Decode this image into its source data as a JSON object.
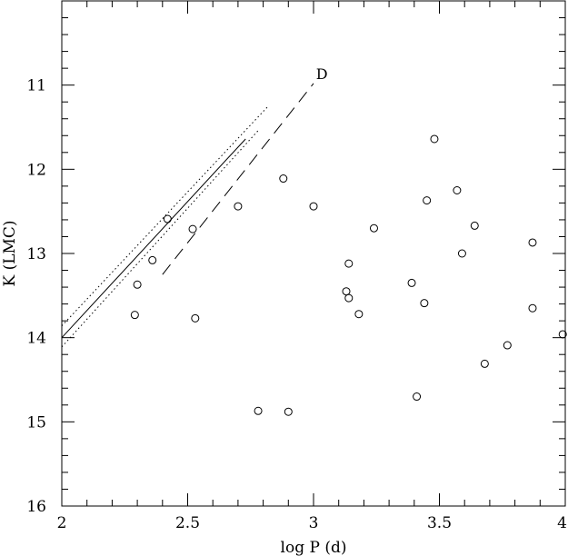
{
  "chart_data": {
    "type": "scatter",
    "title": "",
    "xlabel": "log P (d)",
    "ylabel": "K (LMC)",
    "xlim": [
      2.0,
      4.0
    ],
    "ylim": [
      16.0,
      10.0
    ],
    "y_inverted": true,
    "grid": false,
    "x_major_ticks": [
      2,
      2.5,
      3,
      3.5,
      4
    ],
    "x_tick_labels": [
      "2",
      "2.5",
      "3",
      "3.5",
      "4"
    ],
    "y_major_ticks": [
      11,
      12,
      13,
      14,
      15,
      16
    ],
    "y_tick_labels": [
      "11",
      "12",
      "13",
      "14",
      "15",
      "16"
    ],
    "series": [
      {
        "marker": "open-circle",
        "x": [
          2.29,
          2.3,
          2.36,
          2.42,
          2.52,
          2.53,
          2.7,
          2.78,
          2.88,
          2.9,
          3.0,
          3.13,
          3.14,
          3.14,
          3.18,
          3.24,
          3.39,
          3.41,
          3.44,
          3.45,
          3.48,
          3.57,
          3.59,
          3.64,
          3.68,
          3.77,
          3.87,
          3.87,
          3.99
        ],
        "y": [
          13.73,
          13.37,
          13.08,
          12.59,
          12.71,
          13.77,
          12.44,
          14.87,
          12.11,
          14.88,
          12.44,
          13.45,
          13.12,
          13.53,
          13.72,
          12.7,
          13.35,
          14.7,
          13.59,
          12.37,
          11.64,
          12.25,
          13.0,
          12.67,
          14.31,
          14.09,
          12.87,
          13.65,
          13.96
        ]
      }
    ],
    "lines": [
      {
        "style": "solid",
        "x": [
          2.0,
          2.73
        ],
        "y": [
          14.0,
          11.64
        ]
      },
      {
        "style": "dotted",
        "x": [
          2.0,
          2.82
        ],
        "y": [
          13.86,
          11.25
        ]
      },
      {
        "style": "dotted",
        "x": [
          2.0,
          2.78
        ],
        "y": [
          14.11,
          11.54
        ]
      },
      {
        "style": "dashed",
        "x": [
          2.4,
          3.0
        ],
        "y": [
          13.25,
          10.98
        ]
      }
    ],
    "annotations": [
      {
        "text": "D",
        "x": 3.01,
        "y": 10.93
      }
    ]
  }
}
